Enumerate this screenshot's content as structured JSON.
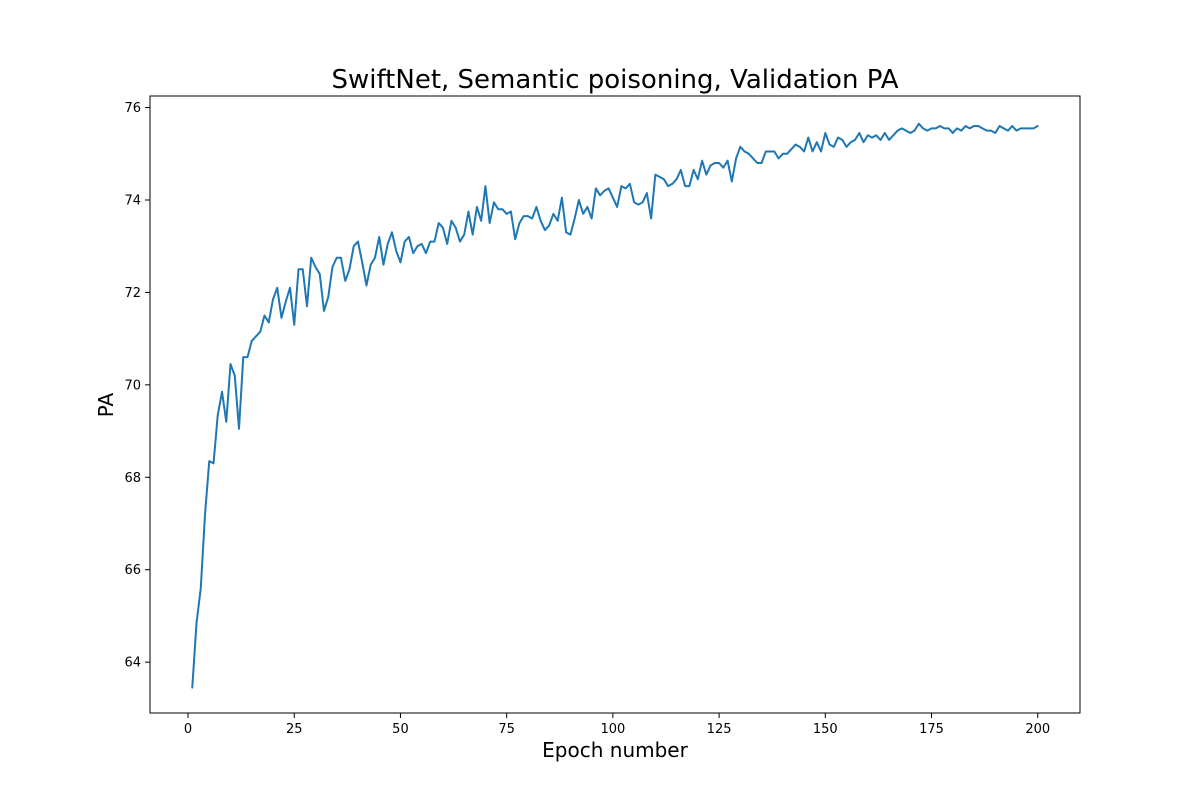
{
  "chart_data": {
    "type": "line",
    "title": "SwiftNet, Semantic poisoning, Validation PA",
    "xlabel": "Epoch number",
    "ylabel": "PA",
    "xlim": [
      -8.95,
      209.95
    ],
    "ylim": [
      62.9,
      76.25
    ],
    "xticks": [
      0,
      25,
      50,
      75,
      100,
      125,
      150,
      175,
      200
    ],
    "yticks": [
      64,
      66,
      68,
      70,
      72,
      74,
      76
    ],
    "grid": false,
    "legend": "none",
    "series": [
      {
        "color": "#1f77b4",
        "x": [
          1,
          2,
          3,
          4,
          5,
          6,
          7,
          8,
          9,
          10,
          11,
          12,
          13,
          14,
          15,
          16,
          17,
          18,
          19,
          20,
          21,
          22,
          23,
          24,
          25,
          26,
          27,
          28,
          29,
          30,
          31,
          32,
          33,
          34,
          35,
          36,
          37,
          38,
          39,
          40,
          41,
          42,
          43,
          44,
          45,
          46,
          47,
          48,
          49,
          50,
          51,
          52,
          53,
          54,
          55,
          56,
          57,
          58,
          59,
          60,
          61,
          62,
          63,
          64,
          65,
          66,
          67,
          68,
          69,
          70,
          71,
          72,
          73,
          74,
          75,
          76,
          77,
          78,
          79,
          80,
          81,
          82,
          83,
          84,
          85,
          86,
          87,
          88,
          89,
          90,
          91,
          92,
          93,
          94,
          95,
          96,
          97,
          98,
          99,
          100,
          101,
          102,
          103,
          104,
          105,
          106,
          107,
          108,
          109,
          110,
          111,
          112,
          113,
          114,
          115,
          116,
          117,
          118,
          119,
          120,
          121,
          122,
          123,
          124,
          125,
          126,
          127,
          128,
          129,
          130,
          131,
          132,
          133,
          134,
          135,
          136,
          137,
          138,
          139,
          140,
          141,
          142,
          143,
          144,
          145,
          146,
          147,
          148,
          149,
          150,
          151,
          152,
          153,
          154,
          155,
          156,
          157,
          158,
          159,
          160,
          161,
          162,
          163,
          164,
          165,
          166,
          167,
          168,
          169,
          170,
          171,
          172,
          173,
          174,
          175,
          176,
          177,
          178,
          179,
          180,
          181,
          182,
          183,
          184,
          185,
          186,
          187,
          188,
          189,
          190,
          191,
          192,
          193,
          194,
          195,
          196,
          197,
          198,
          199,
          200
        ],
        "values": [
          63.45,
          64.85,
          65.6,
          67.2,
          68.35,
          68.3,
          69.35,
          69.85,
          69.2,
          70.45,
          70.2,
          69.05,
          70.6,
          70.6,
          70.95,
          71.05,
          71.15,
          71.5,
          71.35,
          71.85,
          72.1,
          71.45,
          71.8,
          72.1,
          71.3,
          72.5,
          72.5,
          71.7,
          72.75,
          72.55,
          72.4,
          71.6,
          71.9,
          72.55,
          72.75,
          72.75,
          72.25,
          72.5,
          73.0,
          73.1,
          72.65,
          72.15,
          72.6,
          72.75,
          73.2,
          72.6,
          73.05,
          73.3,
          72.9,
          72.65,
          73.1,
          73.2,
          72.85,
          73.0,
          73.05,
          72.85,
          73.1,
          73.1,
          73.5,
          73.4,
          73.05,
          73.55,
          73.4,
          73.1,
          73.25,
          73.75,
          73.25,
          73.85,
          73.55,
          74.3,
          73.5,
          73.95,
          73.8,
          73.8,
          73.7,
          73.75,
          73.15,
          73.5,
          73.65,
          73.65,
          73.6,
          73.85,
          73.55,
          73.35,
          73.45,
          73.7,
          73.55,
          74.05,
          73.3,
          73.25,
          73.6,
          74.0,
          73.7,
          73.85,
          73.6,
          74.25,
          74.1,
          74.2,
          74.25,
          74.05,
          73.85,
          74.3,
          74.25,
          74.35,
          73.95,
          73.9,
          73.95,
          74.15,
          73.6,
          74.55,
          74.5,
          74.45,
          74.3,
          74.35,
          74.45,
          74.65,
          74.3,
          74.3,
          74.65,
          74.45,
          74.85,
          74.55,
          74.75,
          74.8,
          74.8,
          74.7,
          74.85,
          74.4,
          74.9,
          75.15,
          75.05,
          75.0,
          74.9,
          74.8,
          74.8,
          75.05,
          75.05,
          75.05,
          74.9,
          75.0,
          75.0,
          75.1,
          75.2,
          75.15,
          75.05,
          75.35,
          75.05,
          75.25,
          75.05,
          75.45,
          75.2,
          75.15,
          75.35,
          75.3,
          75.15,
          75.25,
          75.3,
          75.45,
          75.25,
          75.4,
          75.35,
          75.4,
          75.3,
          75.45,
          75.3,
          75.4,
          75.5,
          75.55,
          75.5,
          75.45,
          75.5,
          75.65,
          75.55,
          75.5,
          75.55,
          75.55,
          75.6,
          75.55,
          75.55,
          75.45,
          75.55,
          75.5,
          75.6,
          75.55,
          75.6,
          75.6,
          75.55,
          75.5,
          75.5,
          75.45,
          75.6,
          75.55,
          75.5,
          75.6,
          75.5,
          75.55,
          75.55,
          75.55,
          75.55,
          75.6
        ]
      }
    ]
  }
}
